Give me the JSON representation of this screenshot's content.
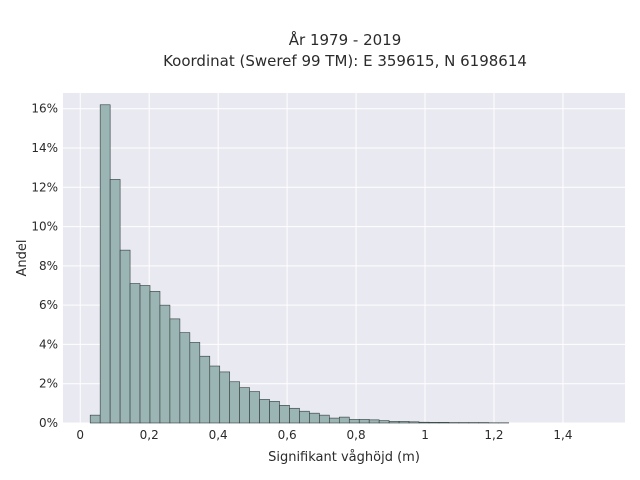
{
  "chart_data": {
    "type": "bar",
    "title": "År 1979 - 2019",
    "subtitle": "Koordinat (Sweref 99 TM): E 359615, N 6198614",
    "xlabel": "Signifikant våghöjd (m)",
    "ylabel": "Andel",
    "xlim": [
      -0.05,
      1.58
    ],
    "ylim": [
      0,
      0.168
    ],
    "xticks": [
      0,
      0.2,
      0.4,
      0.6,
      0.8,
      1.0,
      1.2,
      1.4
    ],
    "xtick_labels": [
      "0",
      "0,2",
      "0,4",
      "0,6",
      "0,8",
      "1",
      "1,2",
      "1,4"
    ],
    "yticks": [
      0,
      0.02,
      0.04,
      0.06,
      0.08,
      0.1,
      0.12,
      0.14,
      0.16
    ],
    "ytick_labels": [
      "0%",
      "2%",
      "4%",
      "6%",
      "8%",
      "10%",
      "12%",
      "14%",
      "16%"
    ],
    "grid": true,
    "bin_width": 0.0289,
    "bin_start": 0.0289,
    "values": [
      0.004,
      0.162,
      0.124,
      0.088,
      0.071,
      0.07,
      0.067,
      0.06,
      0.053,
      0.046,
      0.041,
      0.034,
      0.029,
      0.026,
      0.021,
      0.018,
      0.016,
      0.012,
      0.011,
      0.009,
      0.0075,
      0.006,
      0.005,
      0.004,
      0.0025,
      0.003,
      0.0018,
      0.0018,
      0.0016,
      0.0012,
      0.0008,
      0.0008,
      0.0006,
      0.0004,
      0.0003,
      0.0003,
      0.0002,
      0.0002,
      0.0002,
      0.0002,
      0.0001,
      0.0001
    ],
    "colors": {
      "bar_fill": "#9bb5b4",
      "bar_edge": "#2f3b3b",
      "plot_bg": "#e9e9f1",
      "grid": "#ffffff"
    }
  }
}
